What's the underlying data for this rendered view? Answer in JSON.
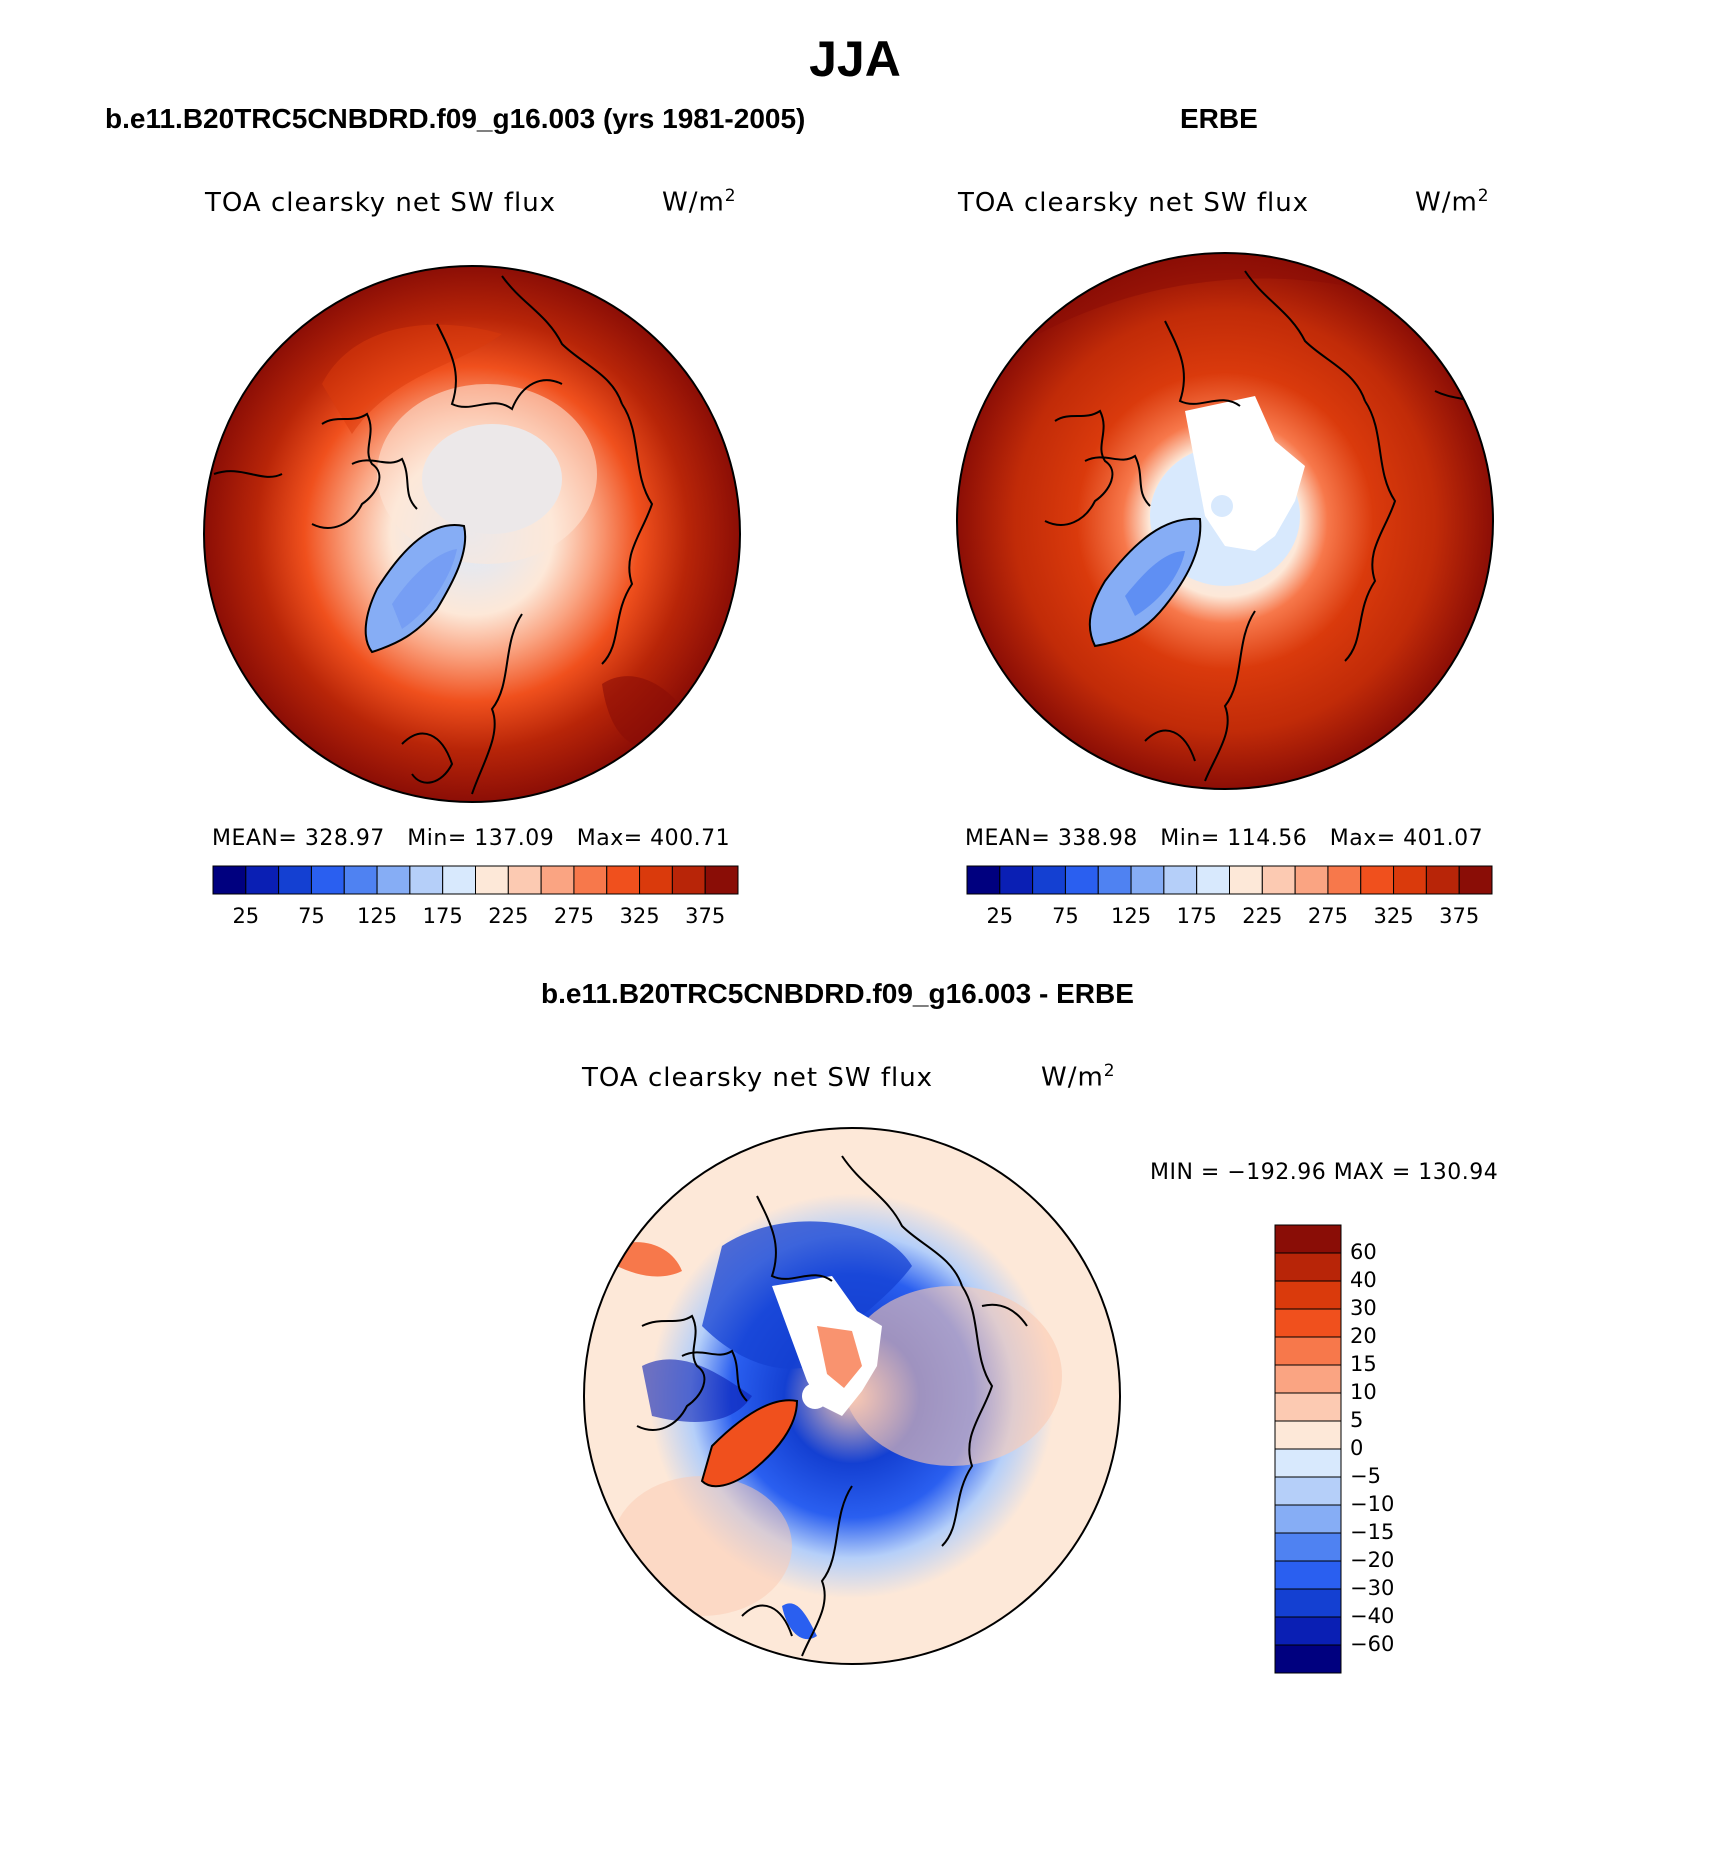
{
  "title": "JJA",
  "panels": [
    {
      "title": "b.e11.B20TRC5CNBDRD.f09_g16.003 (yrs 1981-2005)",
      "variable": "TOA clearsky net SW flux",
      "units": "W/m",
      "units_sup": "2",
      "stats": {
        "mean_label": "MEAN=",
        "mean": "328.97",
        "min_label": "Min=",
        "min": "137.09",
        "max_label": "Max=",
        "max": "400.71"
      }
    },
    {
      "title": "ERBE",
      "variable": "TOA clearsky net SW flux",
      "units": "W/m",
      "units_sup": "2",
      "stats": {
        "mean_label": "MEAN=",
        "mean": "338.98",
        "min_label": "Min=",
        "min": "114.56",
        "max_label": "Max=",
        "max": "401.07"
      }
    }
  ],
  "diff_panel": {
    "title": "b.e11.B20TRC5CNBDRD.f09_g16.003 - ERBE",
    "variable": "TOA clearsky net SW flux",
    "units": "W/m",
    "units_sup": "2",
    "minmax": "MIN = −192.96 MAX = 130.94"
  },
  "colors": {
    "abs_scale": [
      "#00007f",
      "#0a1fb4",
      "#1440d2",
      "#2a5ff0",
      "#4f82f2",
      "#86adf5",
      "#b5cff9",
      "#d8e9fd",
      "#fde8d8",
      "#fccab2",
      "#faa482",
      "#f7784b",
      "#f0501d",
      "#da3a0c",
      "#b82508",
      "#8a0d06"
    ],
    "diff_scale": [
      "#00007f",
      "#0a1fb4",
      "#1440d2",
      "#2a5ff0",
      "#4f82f2",
      "#86adf5",
      "#b5cff9",
      "#d8e9fd",
      "#fde8d8",
      "#fccab2",
      "#faa482",
      "#f7784b",
      "#f0501d",
      "#da3a0c",
      "#b82508",
      "#8a0d06"
    ]
  },
  "chart_data": [
    {
      "type": "heatmap",
      "title": "b.e11.B20TRC5CNBDRD.f09_g16.003 (yrs 1981-2005)",
      "variable": "TOA clearsky net SW flux",
      "units": "W/m2",
      "projection": "north polar stereographic",
      "colorbar_ticks": [
        "25",
        "75",
        "125",
        "175",
        "225",
        "275",
        "325",
        "375"
      ],
      "levels": [
        0,
        25,
        50,
        75,
        100,
        125,
        150,
        175,
        200,
        225,
        250,
        275,
        300,
        325,
        350,
        375,
        400
      ],
      "mean": 328.97,
      "min": 137.09,
      "max": 400.71
    },
    {
      "type": "heatmap",
      "title": "ERBE",
      "variable": "TOA clearsky net SW flux",
      "units": "W/m2",
      "projection": "north polar stereographic",
      "colorbar_ticks": [
        "25",
        "75",
        "125",
        "175",
        "225",
        "275",
        "325",
        "375"
      ],
      "levels": [
        0,
        25,
        50,
        75,
        100,
        125,
        150,
        175,
        200,
        225,
        250,
        275,
        300,
        325,
        350,
        375,
        400
      ],
      "mean": 338.98,
      "min": 114.56,
      "max": 401.07
    },
    {
      "type": "heatmap",
      "title": "b.e11.B20TRC5CNBDRD.f09_g16.003 - ERBE",
      "variable": "TOA clearsky net SW flux",
      "units": "W/m2",
      "projection": "north polar stereographic",
      "colorbar_ticks": [
        "60",
        "40",
        "30",
        "20",
        "15",
        "10",
        "5",
        "0",
        "−5",
        "−10",
        "−15",
        "−20",
        "−30",
        "−40",
        "−60"
      ],
      "min": -192.96,
      "max": 130.94
    }
  ]
}
